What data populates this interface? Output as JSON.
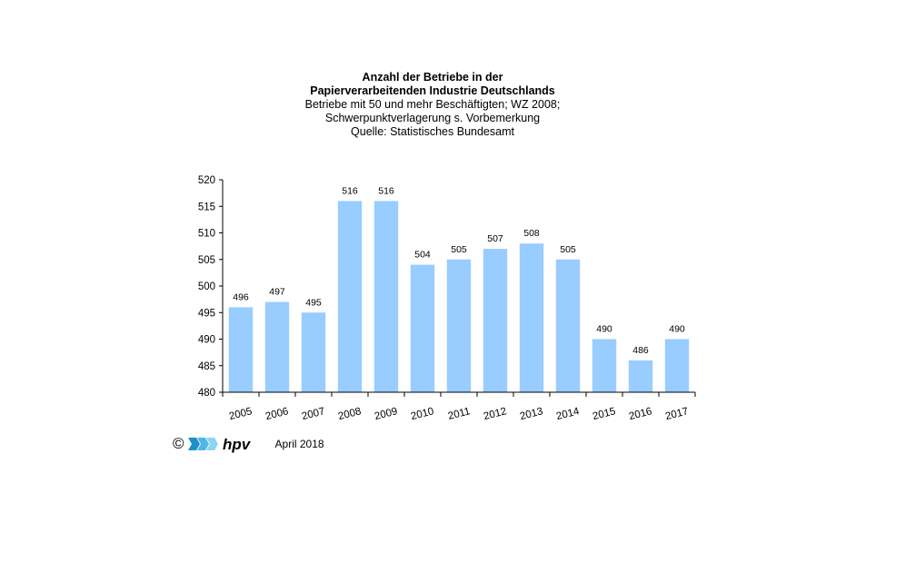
{
  "title_lines": [
    "Anzahl der Betriebe in der",
    "Papierverarbeitenden Industrie Deutschlands",
    "Betriebe  mit 50 und  mehr Beschäftigten;  WZ 2008;",
    "Schwerpunktverlagerung   s. Vorbemerkung",
    "Quelle:  Statistisches Bundesamt"
  ],
  "chart_data": {
    "type": "bar",
    "title": "Anzahl der Betriebe in der Papierverarbeitenden Industrie Deutschlands",
    "subtitle": "Betriebe mit 50 und mehr Beschäftigten; WZ 2008; Schwerpunktverlagerung s. Vorbemerkung",
    "source": "Quelle: Statistisches Bundesamt",
    "categories": [
      "2005",
      "2006",
      "2007",
      "2008",
      "2009",
      "2010",
      "2011",
      "2012",
      "2013",
      "2014",
      "2015",
      "2016",
      "2017"
    ],
    "values": [
      496,
      497,
      495,
      516,
      516,
      504,
      505,
      507,
      508,
      505,
      490,
      486,
      490
    ],
    "xlabel": "",
    "ylabel": "",
    "ylim": [
      480,
      520
    ],
    "yticks": [
      480,
      485,
      490,
      495,
      500,
      505,
      510,
      515,
      520
    ],
    "bar_color": "#99CCFF",
    "grid": false,
    "legend": "none",
    "data_labels": true
  },
  "footer": {
    "copyright": "©",
    "logo_text": "hpv",
    "date": "April 2018",
    "logo_colors": [
      "#1E8FC8",
      "#4FB8E8",
      "#8FD4F2"
    ]
  }
}
